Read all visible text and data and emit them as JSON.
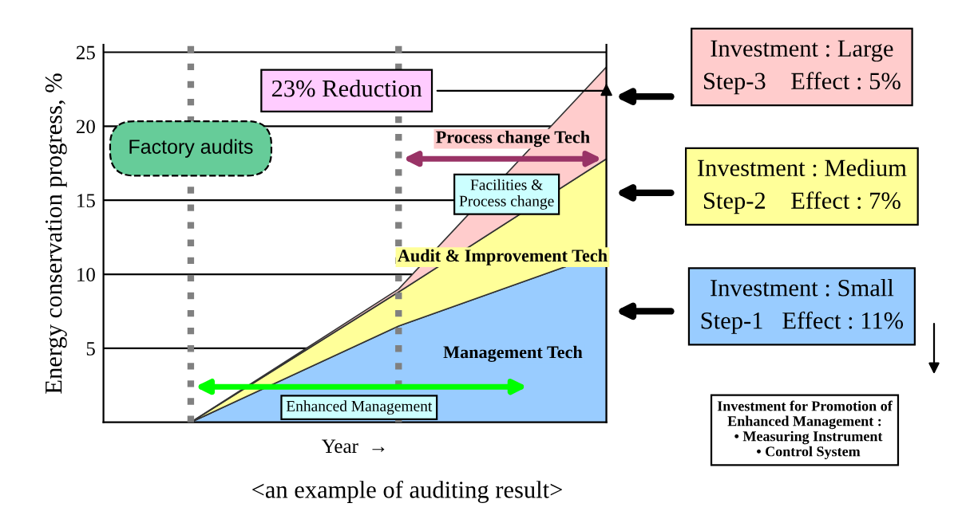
{
  "chart_data": {
    "type": "area",
    "stacked": true,
    "categories": [
      null,
      null,
      null
    ],
    "series": [
      {
        "name": "Management Tech",
        "color": "#99ccff",
        "values": [
          0,
          6.5,
          11.5
        ]
      },
      {
        "name": "Audit & Improvement Tech",
        "color": "#ffff99",
        "values": [
          0,
          2.3,
          6.3
        ]
      },
      {
        "name": "Process change Tech",
        "color": "#ffcccc",
        "values": [
          0,
          0.2,
          6.2
        ]
      }
    ],
    "ylim": [
      0,
      25.5
    ],
    "yticks": [
      5,
      10,
      15,
      20,
      25
    ],
    "grid": "y",
    "ylabel": "Energy conservation progress, %",
    "xlabel": "Year  →",
    "annotations": [
      "23% Reduction",
      "Factory audits",
      "Facilities &\nProcess change",
      "Enhanced Management",
      "Investment : Large\nStep-3    Effect : 5%",
      "Investment : Medium\nStep-2    Effect : 7%",
      "Investment : Small\nStep-1   Effect : 11%",
      "Investment for Promotion of\nEnhanced Management :\n  • Measuring Instrument\n  • Control System",
      "<an example of auditing result>"
    ],
    "legend": false
  }
}
